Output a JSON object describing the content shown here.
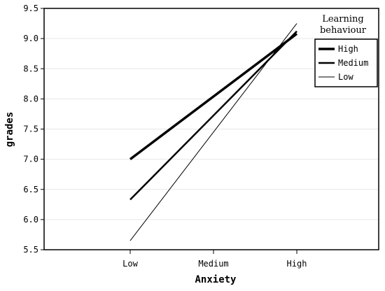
{
  "chart_data": {
    "type": "line",
    "categories": [
      "Low",
      "Medium",
      "High"
    ],
    "xlabel": "Anxiety",
    "ylabel": "grades",
    "ylim": [
      5.5,
      9.5
    ],
    "yticks": [
      "5.5",
      "6.0",
      "6.5",
      "7.0",
      "7.5",
      "8.0",
      "8.5",
      "9.0",
      "9.5"
    ],
    "grid": "horizontal",
    "legend": {
      "title": "Learning behaviour",
      "placement": "top-right"
    },
    "series": [
      {
        "name": "High",
        "values": [
          7.0,
          null,
          9.08
        ]
      },
      {
        "name": "Medium",
        "values": [
          6.33,
          null,
          9.12
        ]
      },
      {
        "name": "Low",
        "values": [
          5.65,
          null,
          9.25
        ]
      }
    ]
  },
  "colors": {
    "line": "#000000",
    "grid": "#e6e6e6"
  }
}
